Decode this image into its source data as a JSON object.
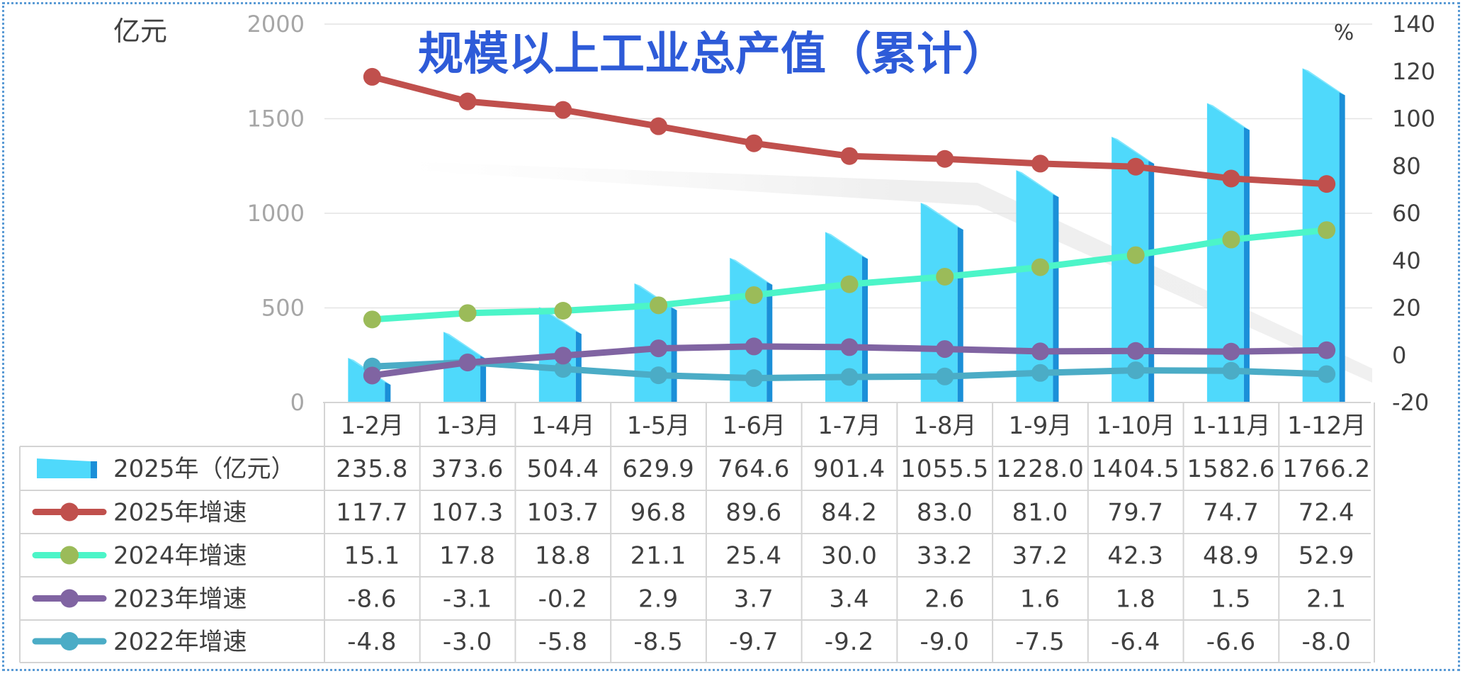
{
  "chart_data": {
    "type": "bar",
    "title": "规模以上工业总产值（累计）",
    "left_axis_unit": "亿元",
    "right_axis_unit": "%",
    "ylim_left": [
      0,
      2000
    ],
    "yticks_left": [
      "0",
      "500",
      "1000",
      "1500",
      "2000"
    ],
    "ylim_right": [
      -20,
      140
    ],
    "yticks_right": [
      "-20",
      "0",
      "20",
      "40",
      "60",
      "80",
      "100",
      "120",
      "140"
    ],
    "grid": true,
    "legend": "data-table-bottom",
    "categories": [
      "1-2月",
      "1-3月",
      "1-4月",
      "1-5月",
      "1-6月",
      "1-7月",
      "1-8月",
      "1-9月",
      "1-10月",
      "1-11月",
      "1-12月"
    ],
    "series": [
      {
        "name": "2025年（亿元）",
        "type": "bar",
        "axis": "left",
        "color": "#4fd9fb",
        "values": [
          235.8,
          373.6,
          504.4,
          629.9,
          764.6,
          901.4,
          1055.5,
          1228.0,
          1404.5,
          1582.6,
          1766.2
        ],
        "labels": [
          "235.8",
          "373.6",
          "504.4",
          "629.9",
          "764.6",
          "901.4",
          "1055.5",
          "1228.0",
          "1404.5",
          "1582.6",
          "1766.2"
        ]
      },
      {
        "name": "2025年增速",
        "type": "line",
        "axis": "right",
        "color": "#c0504d",
        "marker": "#c0504d",
        "values": [
          117.7,
          107.3,
          103.7,
          96.8,
          89.6,
          84.2,
          83.0,
          81.0,
          79.7,
          74.7,
          72.4
        ],
        "labels": [
          "117.7",
          "107.3",
          "103.7",
          "96.8",
          "89.6",
          "84.2",
          "83.0",
          "81.0",
          "79.7",
          "74.7",
          "72.4"
        ]
      },
      {
        "name": "2024年增速",
        "type": "line",
        "axis": "right",
        "color": "#4cf5c8",
        "marker": "#9bbb59",
        "values": [
          15.1,
          17.8,
          18.8,
          21.1,
          25.4,
          30.0,
          33.2,
          37.2,
          42.3,
          48.9,
          52.9
        ],
        "labels": [
          "15.1",
          "17.8",
          "18.8",
          "21.1",
          "25.4",
          "30.0",
          "33.2",
          "37.2",
          "42.3",
          "48.9",
          "52.9"
        ]
      },
      {
        "name": "2023年增速",
        "type": "line",
        "axis": "right",
        "color": "#8064a2",
        "marker": "#8064a2",
        "values": [
          -8.6,
          -3.1,
          -0.2,
          2.9,
          3.7,
          3.4,
          2.6,
          1.6,
          1.8,
          1.5,
          2.1
        ],
        "labels": [
          "-8.6",
          "-3.1",
          "-0.2",
          "2.9",
          "3.7",
          "3.4",
          "2.6",
          "1.6",
          "1.8",
          "1.5",
          "2.1"
        ]
      },
      {
        "name": "2022年增速",
        "type": "line",
        "axis": "right",
        "color": "#4bacc6",
        "marker": "#4bacc6",
        "values": [
          -4.8,
          -3.0,
          -5.8,
          -8.5,
          -9.7,
          -9.2,
          -9.0,
          -7.5,
          -6.4,
          -6.6,
          -8.0
        ],
        "labels": [
          "-4.8",
          "-3.0",
          "-5.8",
          "-8.5",
          "-9.7",
          "-9.2",
          "-9.0",
          "-7.5",
          "-6.4",
          "-6.6",
          "-8.0"
        ]
      }
    ]
  }
}
